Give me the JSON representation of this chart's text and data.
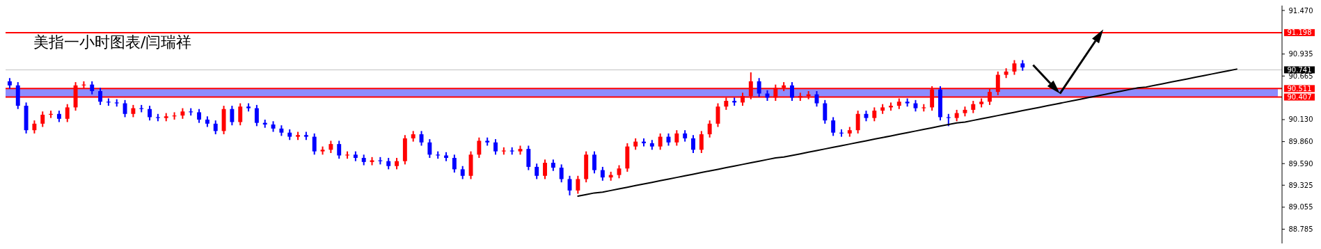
{
  "chart_data": {
    "type": "candlestick",
    "title": "美指一小时图表/闫瑞祥",
    "tick_labels": "y",
    "categories": [
      null,
      null,
      null,
      null,
      null,
      null,
      null,
      null,
      null,
      null,
      null,
      null,
      null,
      null,
      null,
      null,
      null,
      null,
      null,
      null,
      null,
      null,
      null,
      null,
      null,
      null,
      null,
      null,
      null,
      null,
      null,
      null,
      null,
      null,
      null,
      null,
      null,
      null,
      null,
      null,
      null,
      null,
      null,
      null,
      null,
      null,
      null,
      null,
      null,
      null,
      null,
      null,
      null,
      null,
      null,
      null,
      null,
      null,
      null,
      null,
      null,
      null,
      null,
      null,
      null,
      null,
      null,
      null,
      null,
      null,
      null,
      null,
      null,
      null,
      null,
      null,
      null,
      null,
      null,
      null,
      null,
      null,
      null,
      null,
      null,
      null,
      null,
      null,
      null,
      null,
      null,
      null,
      null,
      null,
      null,
      null,
      null,
      null,
      null,
      null,
      null,
      null,
      null,
      null,
      null,
      null,
      null,
      null,
      null,
      null,
      null,
      null,
      null,
      null,
      null,
      null,
      null,
      null,
      null,
      null,
      null,
      null,
      null,
      null,
      null,
      null,
      null,
      null,
      null,
      null,
      null,
      null,
      null,
      null,
      null,
      null,
      null,
      null,
      null,
      null,
      null,
      null,
      null,
      null,
      null,
      null,
      null,
      null,
      null,
      null,
      null,
      null,
      null,
      null,
      null
    ],
    "ohlc": [
      [
        90.6,
        90.64,
        90.51,
        90.55
      ],
      [
        90.55,
        90.59,
        90.26,
        90.3
      ],
      [
        90.3,
        90.34,
        89.96,
        90.0
      ],
      [
        90.0,
        90.12,
        89.96,
        90.08
      ],
      [
        90.08,
        90.23,
        90.04,
        90.19
      ],
      [
        90.19,
        90.24,
        90.15,
        90.2
      ],
      [
        90.2,
        90.24,
        90.1,
        90.14
      ],
      [
        90.14,
        90.32,
        90.1,
        90.28
      ],
      [
        90.28,
        90.59,
        90.24,
        90.55
      ],
      [
        90.55,
        90.6,
        90.51,
        90.56
      ],
      [
        90.56,
        90.6,
        90.44,
        90.48
      ],
      [
        90.48,
        90.52,
        90.31,
        90.35
      ],
      [
        90.35,
        90.39,
        90.3,
        90.34
      ],
      [
        90.34,
        90.38,
        90.29,
        90.33
      ],
      [
        90.33,
        90.37,
        90.16,
        90.2
      ],
      [
        90.2,
        90.31,
        90.16,
        90.27
      ],
      [
        90.27,
        90.31,
        90.22,
        90.26
      ],
      [
        90.26,
        90.3,
        90.12,
        90.16
      ],
      [
        90.16,
        90.2,
        90.11,
        90.15
      ],
      [
        90.15,
        90.21,
        90.11,
        90.17
      ],
      [
        90.17,
        90.22,
        90.13,
        90.18
      ],
      [
        90.18,
        90.27,
        90.14,
        90.23
      ],
      [
        90.23,
        90.27,
        90.18,
        90.22
      ],
      [
        90.22,
        90.26,
        90.09,
        90.13
      ],
      [
        90.13,
        90.17,
        90.04,
        90.08
      ],
      [
        90.08,
        90.12,
        89.95,
        89.99
      ],
      [
        89.99,
        90.3,
        89.95,
        90.26
      ],
      [
        90.26,
        90.3,
        90.06,
        90.1
      ],
      [
        90.1,
        90.33,
        90.06,
        90.29
      ],
      [
        90.29,
        90.33,
        90.23,
        90.27
      ],
      [
        90.27,
        90.31,
        90.05,
        90.09
      ],
      [
        90.09,
        90.13,
        90.03,
        90.07
      ],
      [
        90.07,
        90.11,
        89.98,
        90.02
      ],
      [
        90.02,
        90.06,
        89.93,
        89.97
      ],
      [
        89.97,
        90.01,
        89.88,
        89.92
      ],
      [
        89.92,
        89.98,
        89.88,
        89.94
      ],
      [
        89.94,
        89.98,
        89.88,
        89.92
      ],
      [
        89.92,
        89.96,
        89.7,
        89.74
      ],
      [
        89.74,
        89.8,
        89.7,
        89.76
      ],
      [
        89.76,
        89.87,
        89.72,
        89.83
      ],
      [
        89.83,
        89.87,
        89.65,
        89.69
      ],
      [
        89.69,
        89.74,
        89.65,
        89.7
      ],
      [
        89.7,
        89.74,
        89.62,
        89.66
      ],
      [
        89.66,
        89.7,
        89.57,
        89.61
      ],
      [
        89.61,
        89.67,
        89.57,
        89.63
      ],
      [
        89.63,
        89.67,
        89.58,
        89.62
      ],
      [
        89.62,
        89.66,
        89.52,
        89.56
      ],
      [
        89.56,
        89.66,
        89.52,
        89.62
      ],
      [
        89.62,
        89.94,
        89.58,
        89.9
      ],
      [
        89.9,
        89.99,
        89.86,
        89.95
      ],
      [
        89.95,
        89.99,
        89.81,
        89.85
      ],
      [
        89.85,
        89.89,
        89.66,
        89.7
      ],
      [
        89.7,
        89.74,
        89.65,
        89.69
      ],
      [
        89.69,
        89.73,
        89.62,
        89.66
      ],
      [
        89.66,
        89.7,
        89.48,
        89.52
      ],
      [
        89.52,
        89.56,
        89.4,
        89.44
      ],
      [
        89.44,
        89.74,
        89.4,
        89.7
      ],
      [
        89.7,
        89.91,
        89.66,
        89.87
      ],
      [
        89.87,
        89.91,
        89.81,
        89.85
      ],
      [
        89.85,
        89.89,
        89.7,
        89.74
      ],
      [
        89.74,
        89.79,
        89.7,
        89.75
      ],
      [
        89.75,
        89.79,
        89.7,
        89.74
      ],
      [
        89.74,
        89.81,
        89.7,
        89.77
      ],
      [
        89.77,
        89.81,
        89.51,
        89.55
      ],
      [
        89.55,
        89.59,
        89.4,
        89.44
      ],
      [
        89.44,
        89.64,
        89.4,
        89.6
      ],
      [
        89.6,
        89.64,
        89.5,
        89.54
      ],
      [
        89.54,
        89.58,
        89.36,
        89.4
      ],
      [
        89.4,
        89.44,
        89.2,
        89.26
      ],
      [
        89.26,
        89.44,
        89.22,
        89.4
      ],
      [
        89.4,
        89.74,
        89.36,
        89.7
      ],
      [
        89.7,
        89.74,
        89.47,
        89.51
      ],
      [
        89.51,
        89.55,
        89.38,
        89.42
      ],
      [
        89.42,
        89.49,
        89.38,
        89.45
      ],
      [
        89.45,
        89.57,
        89.41,
        89.53
      ],
      [
        89.53,
        89.84,
        89.49,
        89.8
      ],
      [
        89.8,
        89.9,
        89.76,
        89.86
      ],
      [
        89.86,
        89.9,
        89.8,
        89.84
      ],
      [
        89.84,
        89.88,
        89.76,
        89.8
      ],
      [
        89.8,
        89.96,
        89.76,
        89.92
      ],
      [
        89.92,
        89.96,
        89.81,
        89.85
      ],
      [
        89.85,
        90.0,
        89.81,
        89.96
      ],
      [
        89.96,
        90.0,
        89.86,
        89.9
      ],
      [
        89.9,
        89.94,
        89.72,
        89.76
      ],
      [
        89.76,
        89.99,
        89.72,
        89.95
      ],
      [
        89.95,
        90.12,
        89.91,
        90.08
      ],
      [
        90.08,
        90.33,
        90.04,
        90.29
      ],
      [
        90.29,
        90.4,
        90.25,
        90.36
      ],
      [
        90.36,
        90.4,
        90.3,
        90.34
      ],
      [
        90.34,
        90.46,
        90.3,
        90.42
      ],
      [
        90.42,
        90.71,
        90.38,
        90.6
      ],
      [
        90.6,
        90.64,
        90.41,
        90.45
      ],
      [
        90.45,
        90.49,
        90.36,
        90.4
      ],
      [
        90.4,
        90.56,
        90.36,
        90.52
      ],
      [
        90.52,
        90.59,
        90.48,
        90.55
      ],
      [
        90.55,
        90.59,
        90.36,
        90.4
      ],
      [
        90.4,
        90.46,
        90.36,
        90.42
      ],
      [
        90.42,
        90.48,
        90.38,
        90.44
      ],
      [
        90.44,
        90.48,
        90.29,
        90.33
      ],
      [
        90.33,
        90.37,
        90.08,
        90.12
      ],
      [
        90.12,
        90.16,
        89.93,
        89.97
      ],
      [
        89.97,
        90.01,
        89.92,
        89.96
      ],
      [
        89.96,
        90.04,
        89.92,
        90.0
      ],
      [
        90.0,
        90.24,
        89.96,
        90.2
      ],
      [
        90.2,
        90.24,
        90.11,
        90.15
      ],
      [
        90.15,
        90.28,
        90.11,
        90.24
      ],
      [
        90.24,
        90.32,
        90.2,
        90.28
      ],
      [
        90.28,
        90.34,
        90.24,
        90.3
      ],
      [
        90.3,
        90.39,
        90.26,
        90.35
      ],
      [
        90.35,
        90.39,
        90.29,
        90.33
      ],
      [
        90.33,
        90.37,
        90.23,
        90.27
      ],
      [
        90.27,
        90.32,
        90.23,
        90.28
      ],
      [
        90.28,
        90.54,
        90.24,
        90.5
      ],
      [
        90.5,
        90.54,
        90.12,
        90.16
      ],
      [
        90.16,
        90.2,
        90.05,
        90.15
      ],
      [
        90.15,
        90.25,
        90.11,
        90.21
      ],
      [
        90.21,
        90.29,
        90.17,
        90.25
      ],
      [
        90.25,
        90.36,
        90.21,
        90.32
      ],
      [
        90.32,
        90.39,
        90.28,
        90.35
      ],
      [
        90.35,
        90.51,
        90.31,
        90.47
      ],
      [
        90.47,
        90.72,
        90.43,
        90.68
      ],
      [
        90.68,
        90.76,
        90.64,
        90.72
      ],
      [
        90.72,
        90.86,
        90.68,
        90.82
      ],
      [
        90.82,
        90.86,
        90.73,
        90.77
      ],
      null,
      null,
      null,
      null,
      null,
      null,
      null,
      null,
      null,
      null,
      null,
      null,
      null,
      null,
      null,
      null,
      null,
      null,
      null,
      null,
      null,
      null,
      null,
      null,
      null,
      null,
      null,
      null,
      null,
      null,
      null
    ],
    "colors": [
      "#0000ff",
      "#0000ff",
      "#0000ff",
      "#ff0000",
      "#ff0000",
      "#ff0000",
      "#0000ff",
      "#ff0000",
      "#ff0000",
      "#ff0000",
      "#0000ff",
      "#0000ff",
      "#0000ff",
      "#0000ff",
      "#0000ff",
      "#ff0000",
      "#0000ff",
      "#0000ff",
      "#0000ff",
      "#ff0000",
      "#ff0000",
      "#ff0000",
      "#0000ff",
      "#0000ff",
      "#0000ff",
      "#0000ff",
      "#ff0000",
      "#0000ff",
      "#ff0000",
      "#0000ff",
      "#0000ff",
      "#0000ff",
      "#0000ff",
      "#0000ff",
      "#0000ff",
      "#ff0000",
      "#0000ff",
      "#0000ff",
      "#ff0000",
      "#ff0000",
      "#0000ff",
      "#ff0000",
      "#0000ff",
      "#0000ff",
      "#ff0000",
      "#0000ff",
      "#0000ff",
      "#ff0000",
      "#ff0000",
      "#ff0000",
      "#0000ff",
      "#0000ff",
      "#0000ff",
      "#0000ff",
      "#0000ff",
      "#0000ff",
      "#ff0000",
      "#ff0000",
      "#0000ff",
      "#0000ff",
      "#ff0000",
      "#0000ff",
      "#ff0000",
      "#0000ff",
      "#0000ff",
      "#ff0000",
      "#0000ff",
      "#0000ff",
      "#0000ff",
      "#ff0000",
      "#ff0000",
      "#0000ff",
      "#0000ff",
      "#ff0000",
      "#ff0000",
      "#ff0000",
      "#ff0000",
      "#0000ff",
      "#0000ff",
      "#ff0000",
      "#0000ff",
      "#ff0000",
      "#0000ff",
      "#0000ff",
      "#ff0000",
      "#ff0000",
      "#ff0000",
      "#ff0000",
      "#0000ff",
      "#ff0000",
      "#ff0000",
      "#0000ff",
      "#0000ff",
      "#ff0000",
      "#ff0000",
      "#0000ff",
      "#ff0000",
      "#ff0000",
      "#0000ff",
      "#0000ff",
      "#0000ff",
      "#0000ff",
      "#ff0000",
      "#ff0000",
      "#0000ff",
      "#ff0000",
      "#ff0000",
      "#ff0000",
      "#ff0000",
      "#0000ff",
      "#0000ff",
      "#ff0000",
      "#ff0000",
      "#0000ff",
      "#0000ff",
      "#ff0000",
      "#ff0000",
      "#ff0000",
      "#ff0000",
      "#ff0000",
      "#ff0000",
      "#ff0000",
      "#ff0000",
      "#0000ff",
      null,
      null,
      null,
      null,
      null,
      null,
      null,
      null,
      null,
      null,
      null,
      null,
      null,
      null,
      null,
      null,
      null,
      null,
      null,
      null,
      null,
      null,
      null,
      null,
      null,
      null,
      null,
      null,
      null,
      null,
      null
    ],
    "series": [
      {
        "type": "line",
        "color": "#000000",
        "values": [
          null,
          null,
          null,
          null,
          null,
          null,
          null,
          null,
          null,
          null,
          null,
          null,
          null,
          null,
          null,
          null,
          null,
          null,
          null,
          null,
          null,
          null,
          null,
          null,
          null,
          null,
          null,
          null,
          null,
          null,
          null,
          null,
          null,
          null,
          null,
          null,
          null,
          null,
          null,
          null,
          null,
          null,
          null,
          null,
          null,
          null,
          null,
          null,
          null,
          null,
          null,
          null,
          null,
          null,
          null,
          null,
          null,
          null,
          null,
          null,
          null,
          null,
          null,
          null,
          null,
          null,
          null,
          null,
          null,
          89.19,
          89.21,
          89.23,
          89.24,
          89.26,
          89.28,
          89.3,
          89.32,
          89.34,
          89.36,
          89.38,
          89.4,
          89.42,
          89.44,
          89.46,
          89.48,
          89.5,
          89.52,
          89.54,
          89.56,
          89.58,
          89.6,
          89.62,
          89.64,
          89.66,
          89.67,
          89.69,
          89.71,
          89.73,
          89.75,
          89.77,
          89.79,
          89.81,
          89.83,
          89.85,
          89.87,
          89.89,
          89.91,
          89.93,
          89.95,
          89.97,
          89.99,
          90.01,
          90.03,
          90.05,
          90.07,
          90.09,
          90.1,
          90.12,
          90.14,
          90.16,
          90.18,
          90.2,
          90.22,
          90.24,
          90.26,
          90.28,
          90.3,
          90.32,
          90.34,
          90.36,
          90.38,
          90.4,
          90.42,
          90.44,
          90.46,
          90.48,
          90.5,
          90.52,
          90.53,
          90.55,
          90.57,
          90.59,
          90.61,
          90.63,
          90.65,
          90.67,
          90.69,
          90.71,
          90.73,
          90.75,
          null,
          null,
          null,
          null,
          null
        ]
      }
    ],
    "ylim": [
      88.61,
      91.53
    ],
    "yticks": [
      88.785,
      89.055,
      89.325,
      {
        "value": 89.59,
        "label": "89.590"
      },
      {
        "value": 89.86,
        "label": "89.860"
      },
      {
        "value": 90.13,
        "label": "90.130"
      },
      90.665,
      90.935,
      {
        "value": 91.47,
        "label": "91.470"
      }
    ],
    "bands": [
      {
        "axis": "y",
        "from": 90.407,
        "to": 90.511,
        "color": "#0000ff"
      }
    ],
    "ref_lines": [
      {
        "axis": "y",
        "value": 91.198,
        "label": "91.198",
        "color": "#ff0000"
      },
      {
        "axis": "y",
        "value": 90.741,
        "label": "90.741",
        "color": "#c0c0c0"
      },
      {
        "axis": "y",
        "value": 90.511,
        "label": "90.511",
        "color": "#ff0000"
      },
      {
        "axis": "y",
        "value": 90.407,
        "label": "90.407",
        "color": "#ff0000"
      }
    ]
  }
}
